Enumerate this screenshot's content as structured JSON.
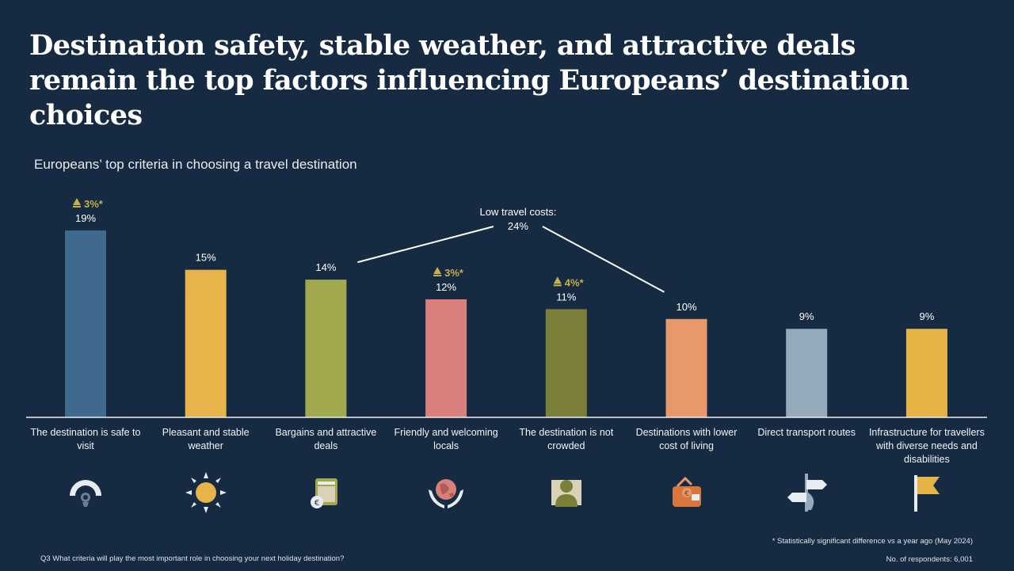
{
  "title": "Destination safety, stable weather, and attractive deals remain the top factors influencing Europeans’ destination choices",
  "subtitle": "Europeans’ top criteria in choosing a travel destination",
  "chart_data": {
    "type": "bar",
    "title": "Europeans’ top criteria in choosing a travel destination",
    "xlabel": "",
    "ylabel": "",
    "ylim": [
      0,
      19
    ],
    "grid": false,
    "legend": "none",
    "unit": "%",
    "categories": [
      "The destination is safe to visit",
      "Pleasant and stable weather",
      "Bargains and attractive deals",
      "Friendly and welcoming locals",
      "The destination is not crowded",
      "Destinations with lower cost of living",
      "Direct transport routes",
      "Infrastructure for travellers with diverse needs and disabilities"
    ],
    "values": [
      19,
      15,
      14,
      12,
      11,
      10,
      9,
      9
    ],
    "value_labels": [
      "19%",
      "15%",
      "14%",
      "12%",
      "11%",
      "10%",
      "9%",
      "9%"
    ],
    "changes": [
      "3%*",
      "",
      "",
      "3%*",
      "4%*",
      "",
      "",
      ""
    ],
    "colors": [
      "#3f6a8d",
      "#e7b44c",
      "#a2a94c",
      "#d9807c",
      "#7c7f37",
      "#e8996a",
      "#95aabb",
      "#e6b347"
    ],
    "annotation": {
      "text": "Low travel costs:",
      "value": "24%",
      "links": [
        2,
        5
      ]
    }
  },
  "icons": [
    "safety-gauge-icon",
    "sun-icon",
    "wallet-coin-icon",
    "globe-hands-icon",
    "person-alone-icon",
    "wallet-euro-icon",
    "direction-signpost-icon",
    "flag-icon"
  ],
  "footnote": "* Statistically significant difference vs a year ago (May  2024)",
  "question": "Q3 What criteria will play the most important role in choosing your next holiday destination?",
  "respondents": "No. of respondents: 6,001",
  "colors": {
    "background": "#162a42",
    "change_text": "#c8b04a",
    "axis": "#e8ecf1"
  }
}
